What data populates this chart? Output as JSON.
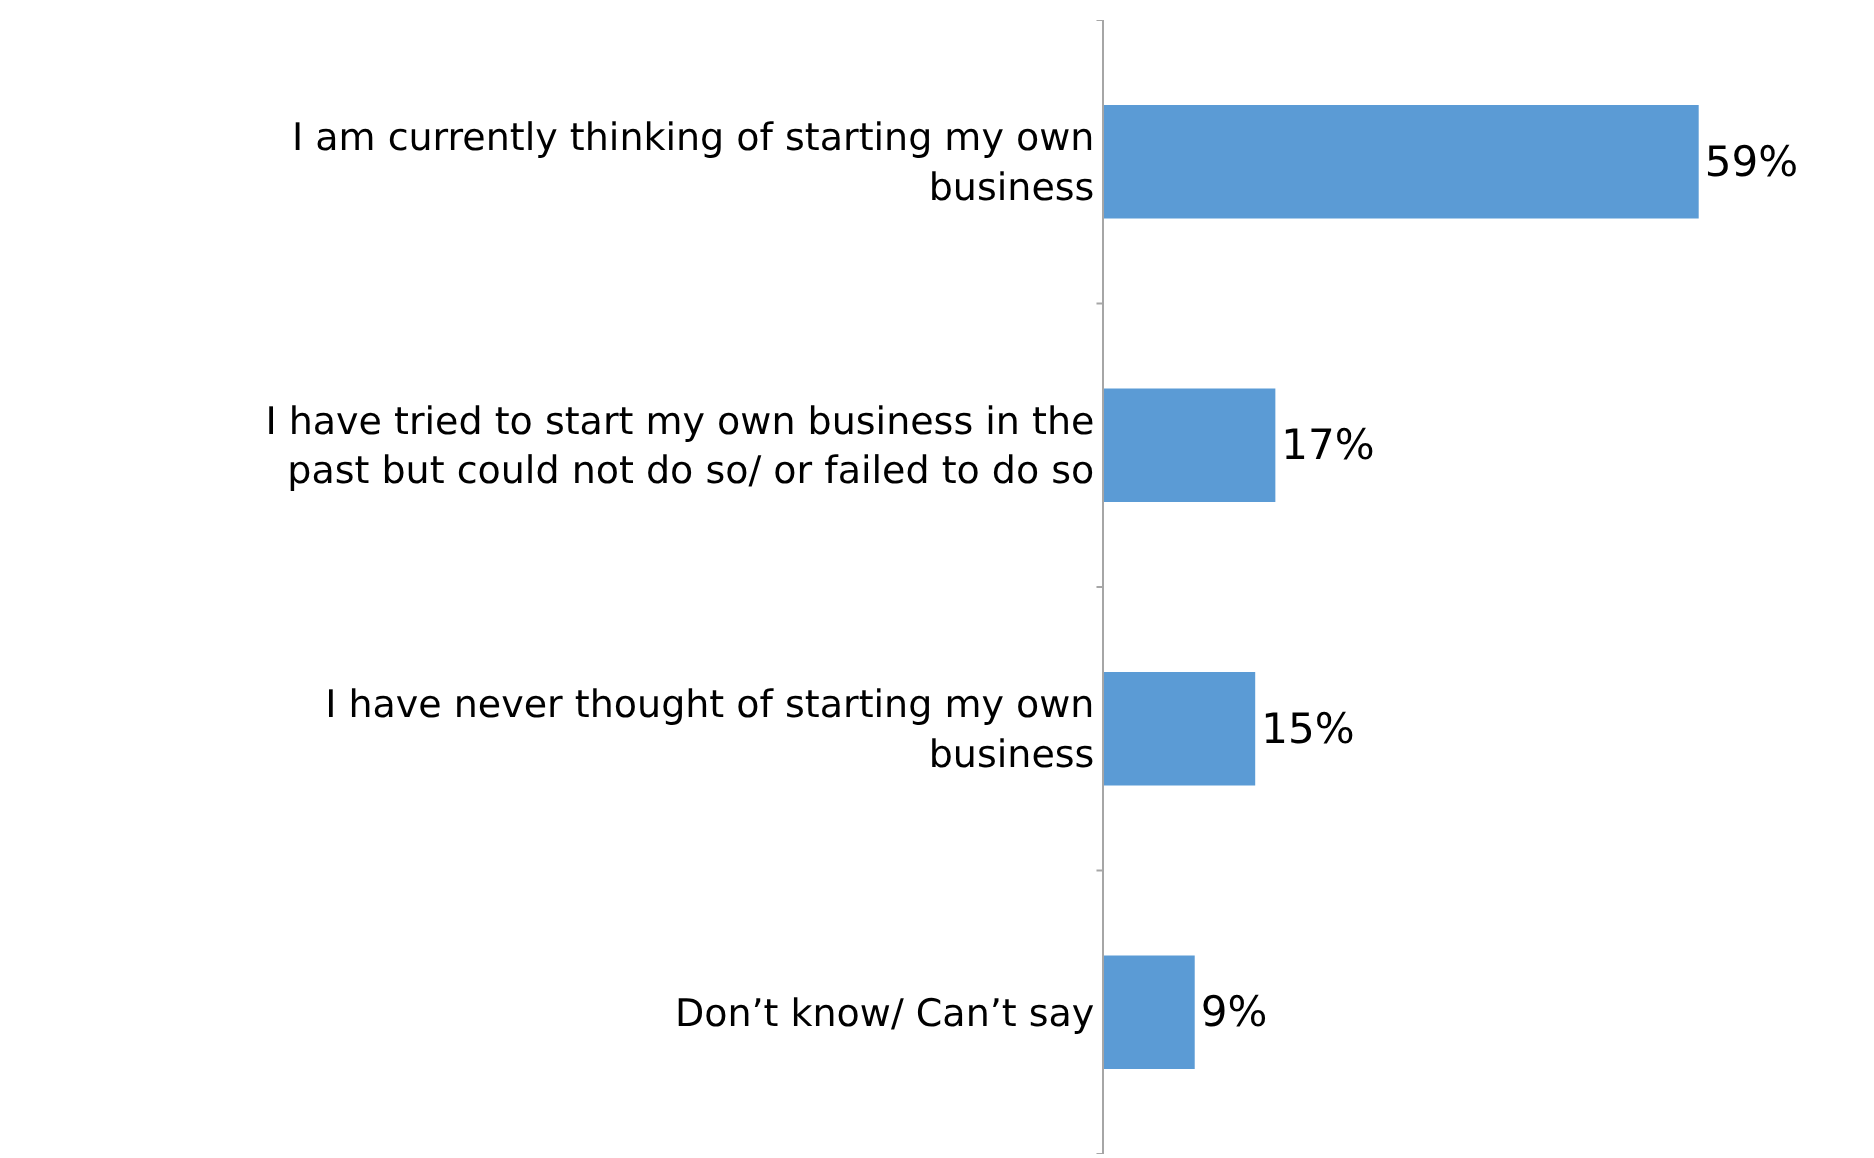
{
  "chart_data": {
    "type": "bar",
    "orientation": "horizontal",
    "categories": [
      "I am currently thinking of starting my own business",
      "I have tried to start my own business in the past but could not do so/ or failed to do so",
      "I have never thought of starting my own business",
      "Don’t know/ Can’t say"
    ],
    "values": [
      59,
      17,
      15,
      9
    ],
    "value_labels": [
      "59%",
      "17%",
      "15%",
      "9%"
    ],
    "color": "#5b9bd5"
  }
}
